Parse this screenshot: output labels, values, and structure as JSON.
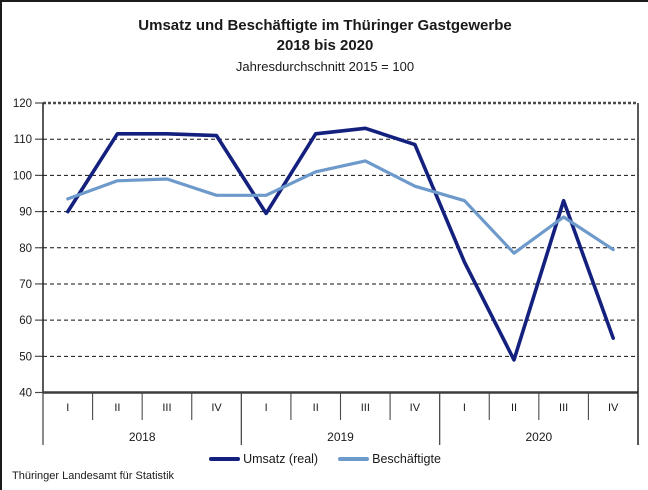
{
  "chart_data": {
    "type": "line",
    "title": "Umsatz und Beschäftigte im Thüringer Gastgewerbe",
    "title_line2": "2018 bis 2020",
    "subtitle": "Jahresdurchschnitt 2015 = 100",
    "ylim": [
      40,
      120
    ],
    "yticks": [
      40,
      50,
      60,
      70,
      80,
      90,
      100,
      110,
      120
    ],
    "grid": "horizontal-dashed",
    "legend_position": "bottom-center",
    "years": [
      {
        "label": "2018",
        "quarters": [
          "I",
          "II",
          "III",
          "IV"
        ]
      },
      {
        "label": "2019",
        "quarters": [
          "I",
          "II",
          "III",
          "IV"
        ]
      },
      {
        "label": "2020",
        "quarters": [
          "I",
          "II",
          "III",
          "IV"
        ]
      }
    ],
    "x_categories": [
      "2018-I",
      "2018-II",
      "2018-III",
      "2018-IV",
      "2019-I",
      "2019-II",
      "2019-III",
      "2019-IV",
      "2020-I",
      "2020-II",
      "2020-III",
      "2020-IV"
    ],
    "series": [
      {
        "name": "Umsatz (real)",
        "color": "#14207E",
        "values": [
          90,
          111.5,
          111.5,
          111,
          89.5,
          111.5,
          113,
          108.5,
          76,
          49,
          93,
          55
        ]
      },
      {
        "name": "Beschäftigte",
        "color": "#6D9ACB",
        "values": [
          93.5,
          98.5,
          99,
          94.5,
          94.5,
          101,
          104,
          97,
          93,
          78.5,
          88.5,
          79.5
        ]
      }
    ]
  },
  "footer": {
    "source": "Thüringer Landesamt für Statistik"
  },
  "colors": {
    "axis": "#3d3d3d",
    "grid": "#111111",
    "tick": "#4a4a4a",
    "text": "#1a1a1a"
  }
}
